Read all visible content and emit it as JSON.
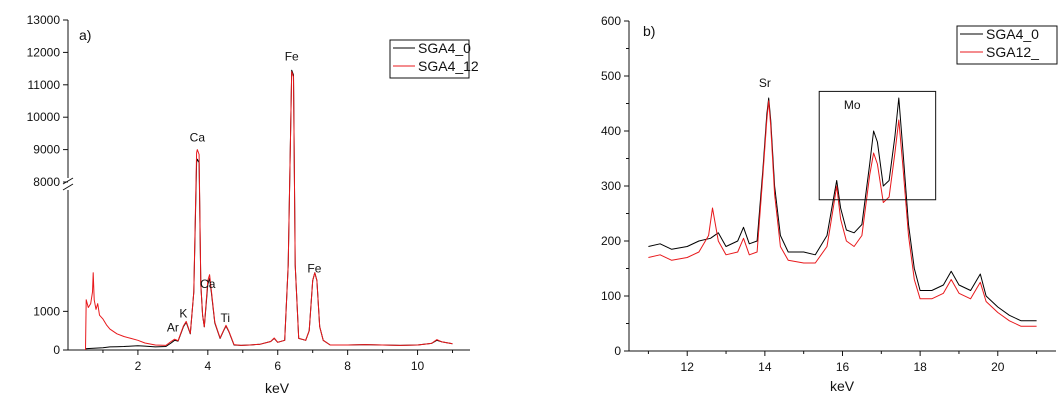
{
  "chart_data": [
    {
      "type": "line",
      "panel_label": "a)",
      "xlabel": "keV",
      "ylabel": "",
      "xlim": [
        0,
        11.5
      ],
      "xticks": [
        "2",
        "4",
        "6",
        "8",
        "10"
      ],
      "y_axis_break": true,
      "ylim_lower": [
        0,
        2200
      ],
      "ylim_upper": [
        8000,
        13000
      ],
      "yticks_lower": [
        "0",
        "1000"
      ],
      "yticks_upper": [
        "8000",
        "9000",
        "10000",
        "11000",
        "12000",
        "13000"
      ],
      "legend": {
        "position": "top-right",
        "entries": [
          "SGA4_0",
          "SGA4_12"
        ]
      },
      "annotations": [
        {
          "text": "Ar",
          "x": 3.0,
          "y": 480
        },
        {
          "text": "K",
          "x": 3.3,
          "y": 840
        },
        {
          "text": "Ca",
          "x": 3.7,
          "y": 9250
        },
        {
          "text": "Ca",
          "x": 4.0,
          "y": 1600
        },
        {
          "text": "Ti",
          "x": 4.5,
          "y": 720
        },
        {
          "text": "Fe",
          "x": 6.4,
          "y": 11750
        },
        {
          "text": "Fe",
          "x": 7.05,
          "y": 2000
        }
      ],
      "series": [
        {
          "name": "SGA4_0",
          "color": "#000000",
          "x": [
            0.5,
            0.6,
            0.8,
            1.0,
            1.2,
            1.4,
            1.6,
            1.8,
            2.0,
            2.2,
            2.5,
            2.8,
            2.95,
            3.05,
            3.15,
            3.3,
            3.38,
            3.5,
            3.6,
            3.68,
            3.7,
            3.75,
            3.8,
            3.85,
            3.9,
            4.0,
            4.05,
            4.1,
            4.2,
            4.35,
            4.45,
            4.52,
            4.6,
            4.75,
            4.95,
            5.2,
            5.5,
            5.8,
            5.9,
            6.0,
            6.2,
            6.3,
            6.4,
            6.45,
            6.5,
            6.6,
            6.8,
            6.9,
            7.0,
            7.06,
            7.12,
            7.2,
            7.3,
            7.5,
            8.0,
            8.5,
            9.0,
            9.5,
            10.0,
            10.4,
            10.55,
            10.7,
            11.0
          ],
          "values": [
            30,
            40,
            50,
            60,
            80,
            85,
            90,
            100,
            110,
            100,
            80,
            90,
            180,
            250,
            230,
            600,
            720,
            420,
            1500,
            8600,
            8700,
            8600,
            1700,
            900,
            600,
            1700,
            1850,
            1500,
            700,
            300,
            500,
            620,
            480,
            130,
            120,
            130,
            150,
            220,
            300,
            200,
            250,
            2200,
            11450,
            11300,
            2400,
            300,
            250,
            500,
            1800,
            2000,
            1800,
            600,
            250,
            130,
            130,
            140,
            130,
            120,
            130,
            170,
            250,
            210,
            160
          ]
        },
        {
          "name": "SGA4_12",
          "color": "#e8191c",
          "x": [
            0.5,
            0.52,
            0.58,
            0.65,
            0.7,
            0.72,
            0.75,
            0.8,
            0.85,
            0.9,
            1.0,
            1.1,
            1.2,
            1.4,
            1.6,
            1.8,
            2.0,
            2.2,
            2.5,
            2.8,
            2.95,
            3.05,
            3.15,
            3.3,
            3.38,
            3.5,
            3.6,
            3.68,
            3.7,
            3.75,
            3.8,
            3.85,
            3.9,
            4.0,
            4.05,
            4.1,
            4.2,
            4.35,
            4.45,
            4.52,
            4.6,
            4.75,
            4.95,
            5.2,
            5.5,
            5.8,
            5.9,
            6.0,
            6.2,
            6.3,
            6.4,
            6.45,
            6.5,
            6.6,
            6.8,
            6.9,
            7.0,
            7.06,
            7.12,
            7.2,
            7.3,
            7.5,
            8.0,
            8.5,
            9.0,
            9.5,
            10.0,
            10.4,
            10.55,
            10.7,
            11.0
          ],
          "values": [
            0,
            1300,
            1100,
            1200,
            1500,
            2000,
            1300,
            1050,
            1200,
            900,
            800,
            650,
            540,
            420,
            350,
            300,
            250,
            180,
            130,
            120,
            220,
            280,
            240,
            620,
            740,
            430,
            1500,
            8900,
            9000,
            8850,
            1700,
            900,
            600,
            1800,
            1950,
            1550,
            720,
            310,
            510,
            640,
            490,
            140,
            120,
            130,
            150,
            220,
            310,
            200,
            250,
            2200,
            11400,
            11250,
            2400,
            300,
            250,
            500,
            1800,
            2000,
            1800,
            600,
            250,
            130,
            130,
            140,
            130,
            120,
            130,
            170,
            270,
            210,
            160
          ]
        }
      ]
    },
    {
      "type": "line",
      "panel_label": "b)",
      "xlabel": "keV",
      "ylabel": "",
      "xlim": [
        10.5,
        21.5
      ],
      "ylim": [
        0,
        600
      ],
      "xticks": [
        "12",
        "14",
        "16",
        "18",
        "20"
      ],
      "yticks": [
        "0",
        "100",
        "200",
        "300",
        "400",
        "500",
        "600"
      ],
      "legend": {
        "position": "top-right",
        "entries": [
          "SGA4_0",
          "SGA12_"
        ]
      },
      "annotations": [
        {
          "text": "Sr",
          "x": 14.0,
          "y": 480
        },
        {
          "text": "Mo",
          "x": 16.25,
          "y": 440
        }
      ],
      "highlight_box": {
        "x0": 15.4,
        "x1": 18.4,
        "y0": 275,
        "y1": 472
      },
      "series": [
        {
          "name": "SGA4_0",
          "color": "#000000",
          "x": [
            11.0,
            11.3,
            11.6,
            12.0,
            12.3,
            12.6,
            12.8,
            13.0,
            13.3,
            13.45,
            13.6,
            13.8,
            13.95,
            14.05,
            14.1,
            14.15,
            14.25,
            14.4,
            14.6,
            15.0,
            15.3,
            15.6,
            15.75,
            15.85,
            15.95,
            16.1,
            16.3,
            16.5,
            16.7,
            16.8,
            16.9,
            17.05,
            17.2,
            17.35,
            17.45,
            17.55,
            17.7,
            17.85,
            18.0,
            18.3,
            18.6,
            18.8,
            19.0,
            19.3,
            19.55,
            19.7,
            20.0,
            20.3,
            20.6,
            21.0
          ],
          "values": [
            190,
            195,
            185,
            190,
            200,
            205,
            215,
            190,
            200,
            225,
            195,
            200,
            330,
            430,
            460,
            420,
            300,
            210,
            180,
            180,
            175,
            210,
            270,
            310,
            260,
            220,
            215,
            230,
            340,
            400,
            380,
            300,
            310,
            390,
            460,
            370,
            230,
            150,
            110,
            110,
            120,
            145,
            120,
            110,
            140,
            100,
            80,
            65,
            55,
            55
          ]
        },
        {
          "name": "SGA12_",
          "color": "#e8191c",
          "x": [
            11.0,
            11.3,
            11.6,
            12.0,
            12.3,
            12.55,
            12.65,
            12.8,
            13.0,
            13.3,
            13.45,
            13.6,
            13.8,
            13.95,
            14.05,
            14.1,
            14.15,
            14.25,
            14.4,
            14.6,
            15.0,
            15.3,
            15.6,
            15.75,
            15.85,
            15.95,
            16.1,
            16.3,
            16.5,
            16.7,
            16.8,
            16.9,
            17.05,
            17.2,
            17.35,
            17.45,
            17.55,
            17.7,
            17.85,
            18.0,
            18.3,
            18.6,
            18.8,
            19.0,
            19.3,
            19.55,
            19.7,
            20.0,
            20.3,
            20.6,
            21.0
          ],
          "values": [
            170,
            175,
            165,
            170,
            180,
            210,
            260,
            200,
            175,
            180,
            205,
            175,
            180,
            320,
            420,
            455,
            410,
            285,
            190,
            165,
            160,
            160,
            190,
            255,
            300,
            240,
            200,
            190,
            210,
            320,
            360,
            340,
            270,
            280,
            360,
            420,
            340,
            210,
            130,
            95,
            95,
            105,
            130,
            105,
            95,
            125,
            90,
            70,
            55,
            45,
            45
          ]
        }
      ]
    }
  ]
}
